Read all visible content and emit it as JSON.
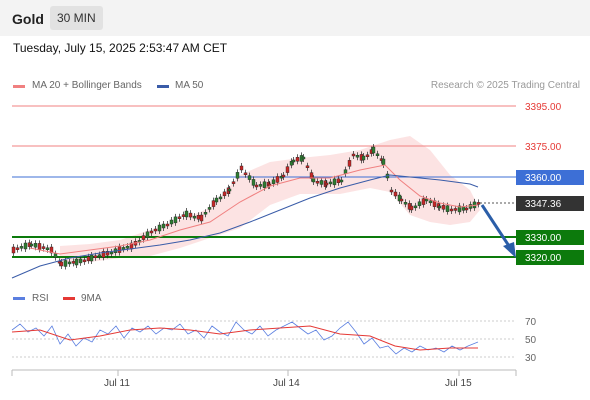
{
  "header": {
    "instrument": "Gold",
    "timeframe": "30 MIN"
  },
  "timestamp": "Tuesday, July 15, 2025 2:53:47 AM CET",
  "legend": {
    "ma20": {
      "label": "MA 20 + Bollinger Bands",
      "color": "#f08080"
    },
    "ma50": {
      "label": "MA 50",
      "color": "#3a5ca8"
    }
  },
  "credit": "Research © 2025 Trading Central",
  "levels": [
    {
      "value": "3395.00",
      "kind": "resistance",
      "color": "#e53935"
    },
    {
      "value": "3375.00",
      "kind": "resistance",
      "color": "#e53935"
    },
    {
      "value": "3360.00",
      "kind": "pivot",
      "color": "#3d6fd6"
    },
    {
      "value": "3330.00",
      "kind": "support",
      "color": "#0c7a0c"
    },
    {
      "value": "3320.00",
      "kind": "support",
      "color": "#0c7a0c"
    }
  ],
  "last_price": "3347.36",
  "rsi_legend": {
    "rsi": {
      "label": "RSI",
      "color": "#5b7fe0"
    },
    "ma9": {
      "label": "9MA",
      "color": "#e53935"
    }
  },
  "rsi_levels": [
    "70",
    "50",
    "30"
  ],
  "x_axis": [
    "Jul 11",
    "Jul 14",
    "Jul 15"
  ]
}
